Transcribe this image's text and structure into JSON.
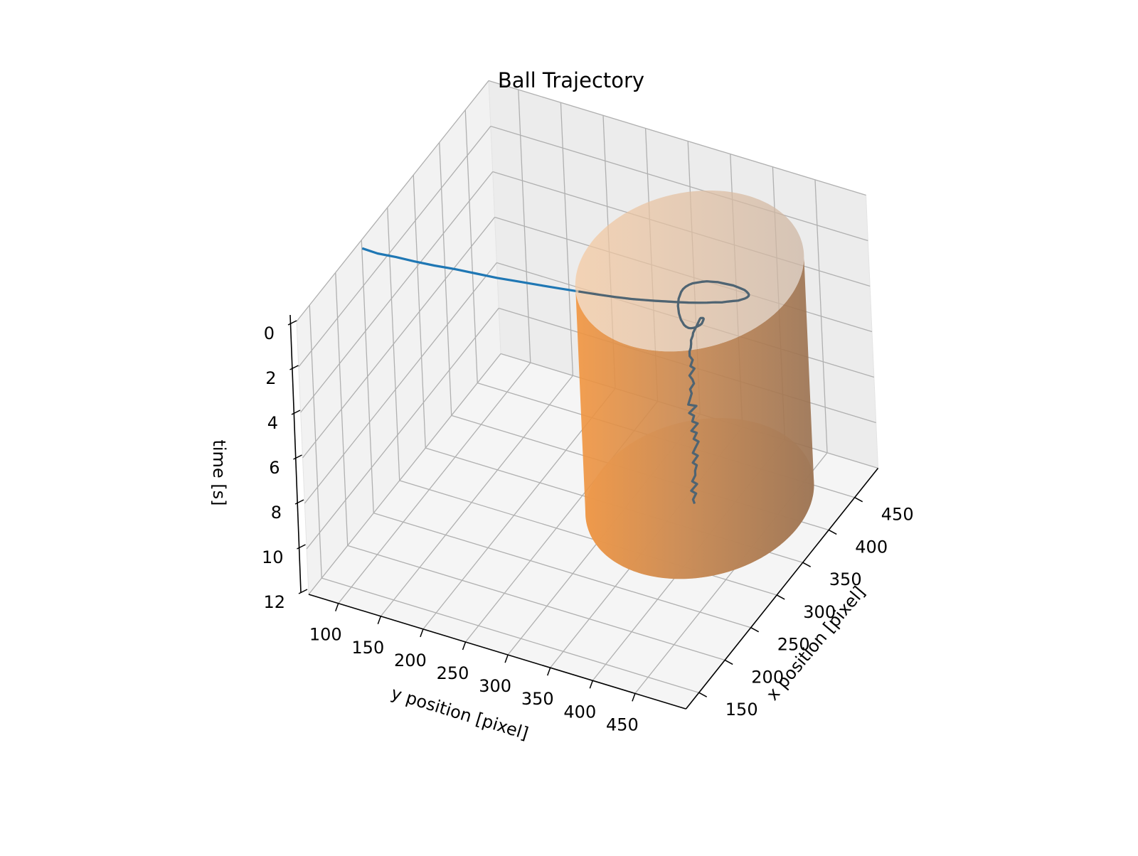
{
  "chart_data": {
    "type": "line3d",
    "title": "Ball Trajectory",
    "xlabel": "x position [pixel]",
    "ylabel": "y position [pixel]",
    "zlabel": "time [s]",
    "x_ticks": [
      150,
      200,
      250,
      300,
      350,
      400,
      450
    ],
    "y_ticks": [
      100,
      150,
      200,
      250,
      300,
      350,
      400,
      450
    ],
    "z_ticks": [
      0,
      2,
      4,
      6,
      8,
      10,
      12
    ],
    "xlim": [
      125,
      495
    ],
    "ylim": [
      65,
      510
    ],
    "zlim": [
      12,
      0
    ],
    "z_inverted": true,
    "grid": true,
    "colors": {
      "trajectory": "#1f77b4",
      "cylinder": "#ff7f0e",
      "pane": "#f2f2f2",
      "grid": "#b0b0b0"
    },
    "cylinder": {
      "center_x": 335,
      "center_y": 400,
      "radius": 115,
      "z_top": 0,
      "z_bottom": 10
    },
    "trajectory": {
      "x": [
        240,
        240,
        243,
        245,
        248,
        252,
        255,
        258,
        262,
        266,
        270,
        274,
        278,
        282,
        286,
        290,
        294,
        298,
        302,
        306,
        310,
        314,
        318,
        321,
        325,
        328,
        331,
        334,
        337,
        340,
        343,
        345,
        347,
        349,
        351,
        352,
        353,
        354,
        354,
        354,
        354,
        353,
        352,
        350,
        348,
        346,
        343,
        340,
        337,
        333,
        329,
        325,
        321,
        317,
        313,
        309,
        306,
        303,
        301,
        299,
        298,
        298,
        299,
        301,
        303,
        306,
        309,
        312,
        315,
        318,
        320,
        322,
        323,
        324,
        324,
        323,
        322,
        321,
        319,
        318,
        317,
        315,
        315,
        314,
        313,
        313,
        315,
        312,
        316,
        311,
        313,
        314,
        311,
        312,
        310,
        308,
        315,
        309,
        313,
        311,
        316,
        310,
        315,
        312,
        316,
        313,
        311,
        315,
        310,
        314,
        312,
        312,
        309,
        313,
        308,
        312,
        309,
        310
      ],
      "y": [
        72,
        90,
        110,
        130,
        152,
        175,
        198,
        220,
        242,
        264,
        286,
        306,
        326,
        344,
        360,
        372,
        384,
        395,
        406,
        416,
        425,
        433,
        440,
        446,
        451,
        455,
        459,
        461,
        463,
        464,
        464,
        463,
        461,
        458,
        454,
        450,
        445,
        439,
        433,
        427,
        421,
        415,
        409,
        404,
        400,
        396,
        393,
        391,
        390,
        390,
        391,
        392,
        394,
        396,
        399,
        402,
        405,
        408,
        411,
        414,
        417,
        420,
        422,
        424,
        425,
        426,
        427,
        427,
        426,
        425,
        424,
        422,
        420,
        418,
        417,
        416,
        415,
        414,
        413,
        412,
        412,
        411,
        411,
        411,
        410,
        410,
        412,
        411,
        413,
        410,
        412,
        413,
        410,
        411,
        410,
        409,
        414,
        409,
        412,
        411,
        414,
        410,
        413,
        411,
        414,
        412,
        410,
        413,
        410,
        412,
        411,
        411,
        409,
        412,
        408,
        411,
        409,
        410
      ],
      "z": [
        0.0,
        0.02,
        0.04,
        0.06,
        0.08,
        0.1,
        0.12,
        0.14,
        0.16,
        0.18,
        0.2,
        0.22,
        0.24,
        0.26,
        0.28,
        0.3,
        0.32,
        0.34,
        0.36,
        0.38,
        0.4,
        0.42,
        0.44,
        0.46,
        0.48,
        0.5,
        0.52,
        0.54,
        0.56,
        0.58,
        0.6,
        0.62,
        0.64,
        0.66,
        0.68,
        0.7,
        0.72,
        0.74,
        0.76,
        0.78,
        0.8,
        0.82,
        0.84,
        0.86,
        0.88,
        0.9,
        0.92,
        0.94,
        0.96,
        0.98,
        1.0,
        1.02,
        1.04,
        1.06,
        1.08,
        1.1,
        1.12,
        1.14,
        1.16,
        1.18,
        1.2,
        1.22,
        1.24,
        1.26,
        1.28,
        1.3,
        1.32,
        1.34,
        1.36,
        1.38,
        1.4,
        1.45,
        1.5,
        1.55,
        1.6,
        1.7,
        1.8,
        1.9,
        2.0,
        2.1,
        2.2,
        2.35,
        2.5,
        2.65,
        2.8,
        3.0,
        3.2,
        3.4,
        3.6,
        3.8,
        4.0,
        4.2,
        4.4,
        4.6,
        4.8,
        5.0,
        5.2,
        5.4,
        5.6,
        5.8,
        6.0,
        6.2,
        6.4,
        6.6,
        6.8,
        7.0,
        7.2,
        7.4,
        7.6,
        7.8,
        8.0,
        8.2,
        8.4,
        8.6,
        8.8,
        9.0,
        9.2,
        9.4
      ]
    }
  }
}
